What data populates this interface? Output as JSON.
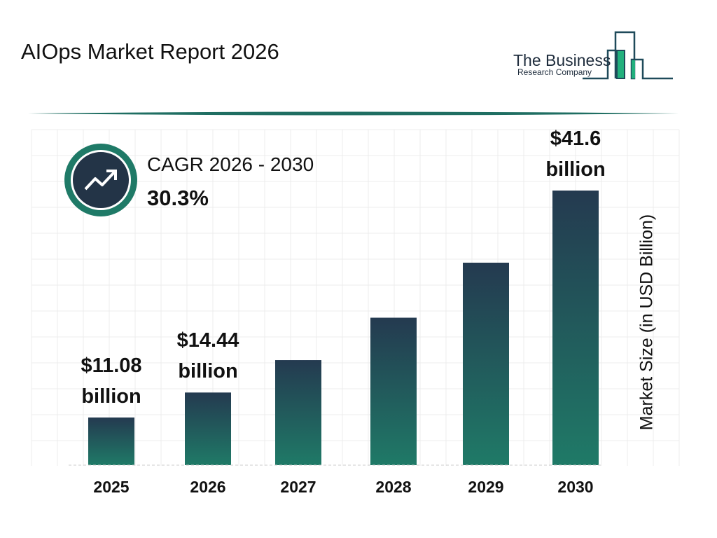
{
  "header": {
    "title": "AIOps Market Report 2026"
  },
  "logo": {
    "line1": "The Business",
    "line2": "Research Company"
  },
  "cagr": {
    "label": "CAGR 2026 - 2030",
    "value": "30.3%",
    "icon": "trending-up-icon"
  },
  "colors": {
    "bar_top": "#243a50",
    "bar_bottom": "#1f7a67",
    "accent": "#1f7a67"
  },
  "chart_data": {
    "type": "bar",
    "title": "",
    "xlabel": "",
    "ylabel": "Market Size (in USD Billion)",
    "categories": [
      "2025",
      "2026",
      "2027",
      "2028",
      "2029",
      "2030"
    ],
    "values": [
      11.08,
      14.44,
      18.8,
      24.5,
      31.9,
      41.6
    ],
    "data_labels": [
      "$11.08 billion",
      "$14.44 billion",
      "",
      "",
      "",
      "$41.6 billion"
    ],
    "data_label_lines": [
      [
        "$11.08",
        "billion"
      ],
      [
        "$14.44",
        "billion"
      ],
      null,
      null,
      null,
      [
        "$41.6",
        "billion"
      ]
    ],
    "grid": true
  }
}
